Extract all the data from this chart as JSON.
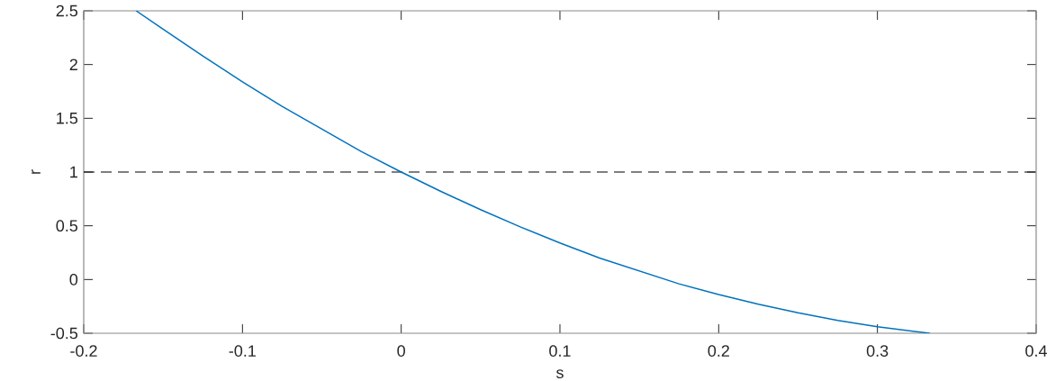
{
  "chart_data": {
    "type": "line",
    "xlabel": "s",
    "ylabel": "r",
    "x": [
      -0.167,
      -0.15,
      -0.125,
      -0.1,
      -0.075,
      -0.05,
      -0.025,
      0,
      0.025,
      0.05,
      0.075,
      0.1,
      0.125,
      0.15,
      0.175,
      0.2,
      0.225,
      0.25,
      0.275,
      0.3,
      0.333
    ],
    "series": [
      {
        "color": "#0072bd",
        "values": [
          2.5,
          2.33,
          2.08,
          1.84,
          1.61,
          1.4,
          1.19,
          1.0,
          0.82,
          0.65,
          0.49,
          0.34,
          0.2,
          0.08,
          -0.04,
          -0.14,
          -0.23,
          -0.31,
          -0.38,
          -0.44,
          -0.5
        ]
      }
    ],
    "xlim": [
      -0.2,
      0.4
    ],
    "ylim": [
      -0.5,
      2.5
    ],
    "xticks": [
      -0.2,
      -0.1,
      0,
      0.1,
      0.2,
      0.3,
      0.4
    ],
    "yticks": [
      -0.5,
      0,
      0.5,
      1,
      1.5,
      2,
      2.5
    ],
    "ref_lines": [
      {
        "axis": "y",
        "value": 1,
        "color": "#000000",
        "line_style": "dashed"
      }
    ]
  }
}
